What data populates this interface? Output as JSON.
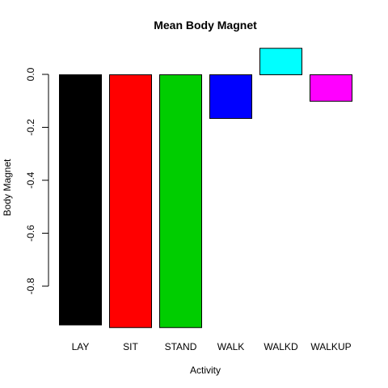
{
  "chart_data": {
    "type": "bar",
    "title": "Mean Body Magnet",
    "xlabel": "Activity",
    "ylabel": "Body Magnet",
    "categories": [
      "LAY",
      "SIT",
      "STAND",
      "WALK",
      "WALKD",
      "WALKUP"
    ],
    "values": [
      -0.945,
      -0.955,
      -0.955,
      -0.165,
      0.1,
      -0.1
    ],
    "colors": [
      "#000000",
      "#ff0000",
      "#00cd00",
      "#0000ff",
      "#00ffff",
      "#ff00ff"
    ],
    "yticks": [
      "0.0",
      "-0.2",
      "-0.4",
      "-0.6",
      "-0.8"
    ],
    "grid": false,
    "legend": "none"
  }
}
